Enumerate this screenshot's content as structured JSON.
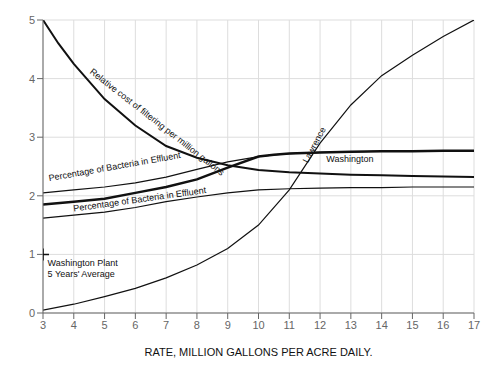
{
  "chart_data": {
    "type": "line",
    "x_label": "RATE, MILLION GALLONS PER ACRE DAILY.",
    "xlim": [
      3,
      17
    ],
    "ylim": [
      0,
      5
    ],
    "xticks": [
      3,
      4,
      5,
      6,
      7,
      8,
      9,
      10,
      11,
      12,
      13,
      14,
      15,
      16,
      17
    ],
    "yticks": [
      0,
      1,
      2,
      3,
      4,
      5
    ],
    "grid": true,
    "color": "#111111",
    "series": [
      {
        "type": "line",
        "x": [
          3,
          3.5,
          4,
          5,
          6,
          7,
          8,
          9,
          10,
          11,
          12,
          13,
          14,
          15,
          16,
          17
        ],
        "values": [
          5.0,
          4.6,
          4.25,
          3.65,
          3.2,
          2.85,
          2.65,
          2.52,
          2.44,
          2.4,
          2.38,
          2.36,
          2.35,
          2.34,
          2.33,
          2.32
        ]
      },
      {
        "type": "line",
        "x": [
          3,
          4,
          5,
          6,
          7,
          8,
          9,
          10,
          11,
          12,
          13,
          14,
          15,
          16,
          17
        ],
        "values": [
          0.05,
          0.15,
          0.28,
          0.42,
          0.6,
          0.82,
          1.1,
          1.5,
          2.1,
          2.9,
          3.55,
          4.05,
          4.4,
          4.72,
          5.0
        ]
      },
      {
        "type": "line",
        "x": [
          3,
          4,
          5,
          6,
          7,
          8,
          9,
          10,
          10.5,
          11,
          11.5,
          12,
          13,
          14,
          15,
          16,
          17
        ],
        "values": [
          1.85,
          1.9,
          1.95,
          2.05,
          2.15,
          2.28,
          2.48,
          2.67,
          2.7,
          2.72,
          2.73,
          2.74,
          2.75,
          2.76,
          2.76,
          2.77,
          2.77
        ]
      },
      {
        "type": "line",
        "x": [
          3,
          4,
          5,
          6,
          7,
          8,
          9,
          10,
          10.5,
          11,
          12,
          13,
          14,
          15,
          16,
          17
        ],
        "values": [
          2.05,
          2.1,
          2.15,
          2.22,
          2.32,
          2.45,
          2.58,
          2.67,
          2.7,
          2.72,
          2.74,
          2.75,
          2.76,
          2.76,
          2.77,
          2.77
        ]
      },
      {
        "type": "line",
        "x": [
          3,
          4,
          5,
          6,
          7,
          8,
          9,
          10,
          11,
          12,
          13,
          14,
          15,
          16,
          17
        ],
        "values": [
          1.62,
          1.67,
          1.72,
          1.8,
          1.9,
          1.98,
          2.05,
          2.1,
          2.12,
          2.13,
          2.14,
          2.14,
          2.15,
          2.15,
          2.15
        ]
      },
      {
        "type": "scatter",
        "marker": "+",
        "x": [
          3
        ],
        "values": [
          1.0
        ]
      }
    ],
    "annotations": [
      {
        "text": "Relative cost of filtering per million gallons",
        "x": 4.5,
        "y": 4.1
      },
      {
        "text": "Lawrence",
        "x": 11.6,
        "y": 2.55
      },
      {
        "text": "Washington",
        "x": 12.2,
        "y": 2.62
      },
      {
        "text": "Percentage of Bacteria in Effluent",
        "x": 3.2,
        "y": 2.25
      },
      {
        "text": "Percentage of Bacteria in Effluent",
        "x": 4.0,
        "y": 1.73
      },
      {
        "text": "Washington Plant\n5 Years' Average",
        "x": 3.15,
        "y": 0.9
      }
    ]
  }
}
